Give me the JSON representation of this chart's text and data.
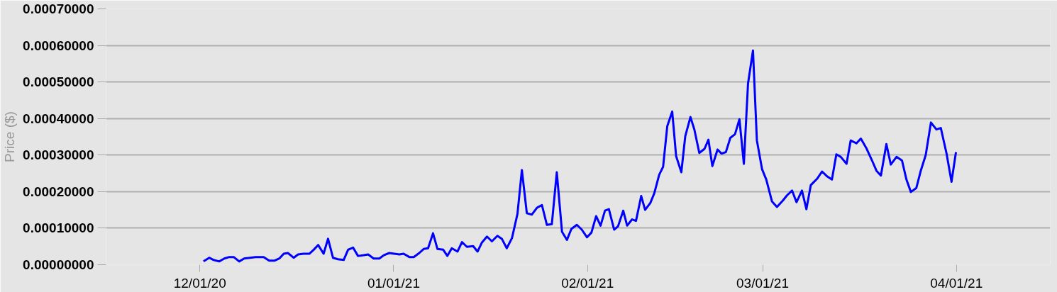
{
  "chart_data": {
    "type": "line",
    "ylabel": "Price ($)",
    "grid": "y",
    "marker": "none",
    "line_style": "solid",
    "xlim": [
      "2020-11-16",
      "2021-04-16"
    ],
    "xticks": [
      {
        "value": "2020-12-01",
        "label": "12/01/20"
      },
      {
        "value": "2021-01-01",
        "label": "01/01/21"
      },
      {
        "value": "2021-02-01",
        "label": "02/01/21"
      },
      {
        "value": "2021-03-01",
        "label": "03/01/21"
      },
      {
        "value": "2021-04-01",
        "label": "04/01/21"
      }
    ],
    "ylim": [
      0,
      0.0007
    ],
    "yticks": [
      {
        "value": 0,
        "label": "0.00000000"
      },
      {
        "value": 0.0001,
        "label": "0.00010000"
      },
      {
        "value": 0.0002,
        "label": "0.00020000"
      },
      {
        "value": 0.0003,
        "label": "0.00030000"
      },
      {
        "value": 0.0004,
        "label": "0.00040000"
      },
      {
        "value": 0.0005,
        "label": "0.00050000"
      },
      {
        "value": 0.0006,
        "label": "0.00060000"
      },
      {
        "value": 0.0007,
        "label": "0.00070000"
      }
    ],
    "series": [
      {
        "color": "#0000ff",
        "x": [
          "2020-12-01T14:00",
          "2020-12-02T12:00",
          "2020-12-03T05:00",
          "2020-12-04T02:00",
          "2020-12-04T22:00",
          "2020-12-05T17:00",
          "2020-12-06T10:00",
          "2020-12-07T07:00",
          "2020-12-08T02:00",
          "2020-12-09T00:00",
          "2020-12-09T22:00",
          "2020-12-10T12:00",
          "2020-12-11T05:00",
          "2020-12-12T02:00",
          "2020-12-12T22:00",
          "2020-12-13T17:00",
          "2020-12-14T10:00",
          "2020-12-15T02:00",
          "2020-12-16T00:00",
          "2020-12-16T17:00",
          "2020-12-17T14:00",
          "2020-12-18T12:00",
          "2020-12-19T05:00",
          "2020-12-19T22:00",
          "2020-12-20T19:00",
          "2020-12-21T12:00",
          "2020-12-22T07:00",
          "2020-12-23T02:00",
          "2020-12-24T00:00",
          "2020-12-24T17:00",
          "2020-12-25T12:00",
          "2020-12-26T07:00",
          "2020-12-27T05:00",
          "2020-12-27T22:00",
          "2020-12-28T19:00",
          "2020-12-29T17:00",
          "2020-12-30T10:00",
          "2020-12-31T07:00",
          "2021-01-01T02:00",
          "2021-01-01T22:00",
          "2021-01-02T14:00",
          "2021-01-03T12:00",
          "2021-01-04T05:00",
          "2021-01-05T02:00",
          "2021-01-05T19:00",
          "2021-01-06T12:00",
          "2021-01-07T07:00",
          "2021-01-08T00:00",
          "2021-01-08T22:00",
          "2021-01-09T14:00",
          "2021-01-10T07:00",
          "2021-01-11T05:00",
          "2021-01-11T22:00",
          "2021-01-12T17:00",
          "2021-01-13T17:00",
          "2021-01-14T10:00",
          "2021-01-15T02:00",
          "2021-01-15T22:00",
          "2021-01-16T17:00",
          "2021-01-17T14:00",
          "2021-01-18T07:00",
          "2021-01-19T02:00",
          "2021-01-19T22:00",
          "2021-01-20T19:00",
          "2021-01-21T12:00",
          "2021-01-22T07:00",
          "2021-01-23T02:00",
          "2021-01-23T22:00",
          "2021-01-24T17:00",
          "2021-01-25T12:00",
          "2021-01-26T07:00",
          "2021-01-27T02:00",
          "2021-01-27T22:00",
          "2021-01-28T17:00",
          "2021-01-29T10:00",
          "2021-01-30T07:00",
          "2021-01-31T02:00",
          "2021-01-31T22:00",
          "2021-02-01T15:00",
          "2021-02-02T09:00",
          "2021-02-03T02:00",
          "2021-02-03T19:00",
          "2021-02-04T10:00",
          "2021-02-05T06:00",
          "2021-02-05T21:00",
          "2021-02-06T17:00",
          "2021-02-07T08:00",
          "2021-02-08T03:00",
          "2021-02-08T18:00",
          "2021-02-09T14:00",
          "2021-02-10T05:00",
          "2021-02-11T01:00",
          "2021-02-11T16:00",
          "2021-02-12T11:00",
          "2021-02-13T02:00",
          "2021-02-13T18:00",
          "2021-02-14T13:00",
          "2021-02-15T04:00",
          "2021-02-16T00:00",
          "2021-02-16T15:00",
          "2021-02-17T11:00",
          "2021-02-18T02:00",
          "2021-02-18T21:00",
          "2021-02-19T17:00",
          "2021-02-20T08:00",
          "2021-02-20T23:00",
          "2021-02-21T19:00",
          "2021-02-22T10:00",
          "2021-02-23T03:00",
          "2021-02-23T20:00",
          "2021-02-24T14:00",
          "2021-02-25T07:00",
          "2021-02-26T00:00",
          "2021-02-26T16:00",
          "2021-02-27T11:00",
          "2021-02-28T02:00",
          "2021-02-28T22:00",
          "2021-03-01T14:00",
          "2021-03-02T12:00",
          "2021-03-03T07:00",
          "2021-03-04T05:00",
          "2021-03-04T22:00",
          "2021-03-05T17:00",
          "2021-03-06T10:00",
          "2021-03-07T07:00",
          "2021-03-08T00:00",
          "2021-03-08T17:00",
          "2021-03-09T17:00",
          "2021-03-10T12:00",
          "2021-03-11T07:00",
          "2021-03-12T02:00",
          "2021-03-12T19:00",
          "2021-03-13T12:00",
          "2021-03-14T10:00",
          "2021-03-15T02:00",
          "2021-03-16T00:00",
          "2021-03-16T17:00",
          "2021-03-17T14:00",
          "2021-03-18T12:00",
          "2021-03-19T05:00",
          "2021-03-19T22:00",
          "2021-03-20T19:00",
          "2021-03-21T12:00",
          "2021-03-22T10:00",
          "2021-03-23T07:00",
          "2021-03-24T00:00",
          "2021-03-24T17:00",
          "2021-03-25T14:00",
          "2021-03-26T07:00",
          "2021-03-27T02:00",
          "2021-03-27T22:00",
          "2021-03-28T19:00",
          "2021-03-29T12:00",
          "2021-03-30T10:00",
          "2021-03-31T05:00",
          "2021-03-31T22:00"
        ],
        "values": [
          9e-06,
          1.9e-05,
          1.3e-05,
          9e-06,
          1.7e-05,
          2.1e-05,
          2.1e-05,
          9e-06,
          1.7e-05,
          1.9e-05,
          2.1e-05,
          2.1e-05,
          2.1e-05,
          1.1e-05,
          1.1e-05,
          1.7e-05,
          3e-05,
          3.2e-05,
          1.9e-05,
          2.8e-05,
          3e-05,
          3e-05,
          4.1e-05,
          5.4e-05,
          3e-05,
          7.1e-05,
          1.9e-05,
          1.5e-05,
          1.3e-05,
          4.1e-05,
          4.7e-05,
          2.4e-05,
          2.6e-05,
          2.8e-05,
          1.7e-05,
          1.7e-05,
          2.6e-05,
          3.2e-05,
          3e-05,
          2.8e-05,
          3e-05,
          2.1e-05,
          2.1e-05,
          3.2e-05,
          4.3e-05,
          4.5e-05,
          8.6e-05,
          4.3e-05,
          4.1e-05,
          2.4e-05,
          4.5e-05,
          3.6e-05,
          6.2e-05,
          4.9e-05,
          5.1e-05,
          3.6e-05,
          6e-05,
          7.7e-05,
          6.4e-05,
          7.9e-05,
          7.1e-05,
          4.5e-05,
          7.3e-05,
          0.000139,
          0.000259,
          0.000141,
          0.000137,
          0.000156,
          0.000163,
          0.000109,
          0.000111,
          0.000253,
          9e-05,
          6.8e-05,
          9.8e-05,
          0.000109,
          9.6e-05,
          7.5e-05,
          8.8e-05,
          0.000133,
          0.000107,
          0.000148,
          0.000152,
          9.6e-05,
          0.000105,
          0.000148,
          0.000107,
          0.000124,
          0.00012,
          0.000188,
          0.00015,
          0.000169,
          0.000195,
          0.000246,
          0.000268,
          0.000379,
          0.000419,
          0.000297,
          0.000253,
          0.000351,
          0.000404,
          0.00037,
          0.000306,
          0.000317,
          0.000342,
          0.00027,
          0.000315,
          0.000304,
          0.000308,
          0.000347,
          0.000357,
          0.000398,
          0.000276,
          0.000496,
          0.000586,
          0.00034,
          0.000261,
          0.000233,
          0.000173,
          0.000158,
          0.000175,
          0.00019,
          0.000203,
          0.000171,
          0.000203,
          0.000152,
          0.000218,
          0.000235,
          0.000255,
          0.000242,
          0.000233,
          0.000302,
          0.000295,
          0.000276,
          0.00034,
          0.000332,
          0.000345,
          0.000319,
          0.000285,
          0.000257,
          0.000244,
          0.00033,
          0.000274,
          0.000295,
          0.000285,
          0.000233,
          0.000199,
          0.00021,
          0.000257,
          0.0003,
          0.000389,
          0.00037,
          0.000374,
          0.000304,
          0.000227,
          0.000308
        ]
      }
    ]
  }
}
